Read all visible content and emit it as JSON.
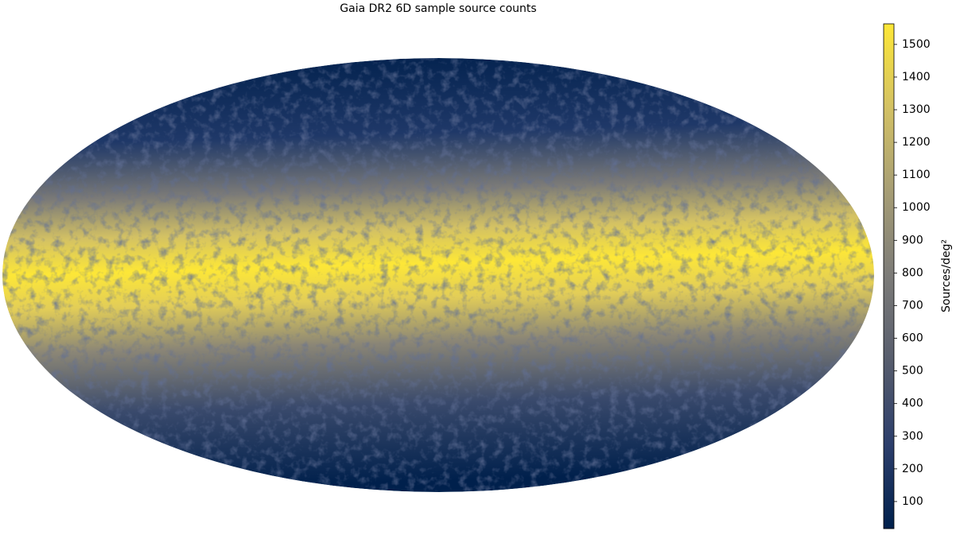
{
  "chart_data": {
    "type": "skymap",
    "title": "Gaia DR2 6D sample source counts",
    "colorbar": {
      "label": "Sources/deg²",
      "clim": [
        17,
        1563
      ],
      "ticks": [
        100,
        200,
        300,
        400,
        500,
        600,
        700,
        800,
        900,
        1000,
        1100,
        1200,
        1300,
        1400,
        1500
      ],
      "colors": [
        "#00204c",
        "#2c3e6b",
        "#575d6d",
        "#7c7b78",
        "#a69d75",
        "#d3c164",
        "#fde737"
      ]
    }
  }
}
